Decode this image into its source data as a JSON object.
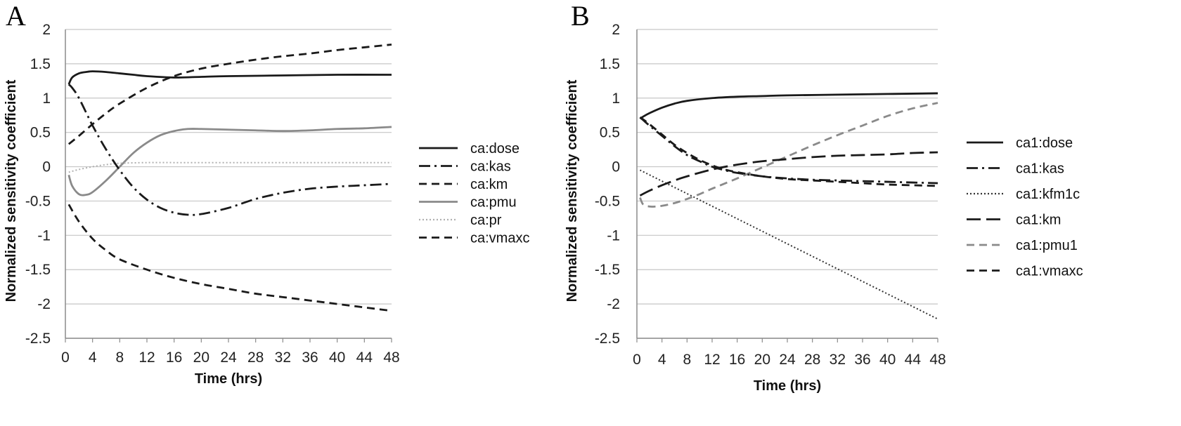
{
  "chart_data": [
    {
      "panel": "A",
      "type": "line",
      "xlabel": "Time (hrs)",
      "ylabel": "Normalized sensitivity coefficient",
      "xlim": [
        0,
        48
      ],
      "ylim": [
        -2.5,
        2
      ],
      "xticks": [
        0,
        4,
        8,
        12,
        16,
        20,
        24,
        28,
        32,
        36,
        40,
        44,
        48
      ],
      "yticks": [
        2,
        1.5,
        1,
        0.5,
        0,
        -0.5,
        -1,
        -1.5,
        -2,
        -2.5
      ],
      "ytick_labels": [
        "2",
        "1.5",
        "1",
        "0.5",
        "0",
        "-0.5",
        "-1",
        "-1.5",
        "-2",
        "-2.5"
      ],
      "grid": "horizontal",
      "legend_position": "right",
      "series": [
        {
          "name": "ca:dose",
          "color": "#1a1a1a",
          "style": "solid",
          "x": [
            0.5,
            1,
            2,
            3,
            4,
            6,
            8,
            10,
            12,
            16,
            20,
            24,
            32,
            40,
            48
          ],
          "y": [
            1.2,
            1.3,
            1.36,
            1.38,
            1.39,
            1.38,
            1.36,
            1.34,
            1.32,
            1.3,
            1.31,
            1.32,
            1.33,
            1.34,
            1.34
          ]
        },
        {
          "name": "ca:kas",
          "color": "#1a1a1a",
          "style": "dashdot",
          "x": [
            0.5,
            1,
            2,
            4,
            6,
            8,
            10,
            12,
            14,
            16,
            18,
            20,
            24,
            28,
            32,
            36,
            40,
            44,
            48
          ],
          "y": [
            1.2,
            1.15,
            1.0,
            0.6,
            0.25,
            -0.05,
            -0.3,
            -0.48,
            -0.6,
            -0.67,
            -0.7,
            -0.69,
            -0.6,
            -0.47,
            -0.38,
            -0.32,
            -0.29,
            -0.27,
            -0.25
          ]
        },
        {
          "name": "ca:km",
          "color": "#1a1a1a",
          "style": "dash",
          "x": [
            0.5,
            2,
            4,
            6,
            8,
            12,
            16,
            20,
            24,
            28,
            32,
            36,
            40,
            44,
            48
          ],
          "y": [
            0.33,
            0.45,
            0.62,
            0.78,
            0.92,
            1.15,
            1.32,
            1.43,
            1.5,
            1.56,
            1.61,
            1.65,
            1.7,
            1.74,
            1.78
          ]
        },
        {
          "name": "ca:pmu",
          "color": "#8a8a8a",
          "style": "solid",
          "x": [
            0.5,
            1,
            2,
            3,
            4,
            6,
            8,
            10,
            12,
            14,
            16,
            18,
            20,
            24,
            28,
            32,
            36,
            40,
            44,
            48
          ],
          "y": [
            -0.12,
            -0.28,
            -0.4,
            -0.41,
            -0.37,
            -0.2,
            0.0,
            0.2,
            0.35,
            0.46,
            0.52,
            0.55,
            0.55,
            0.54,
            0.53,
            0.52,
            0.53,
            0.55,
            0.56,
            0.58
          ]
        },
        {
          "name": "ca:pr",
          "color": "#b0b0b0",
          "style": "dot",
          "x": [
            0.5,
            2,
            4,
            6,
            8,
            12,
            16,
            24,
            32,
            40,
            48
          ],
          "y": [
            -0.08,
            -0.04,
            0.0,
            0.03,
            0.05,
            0.06,
            0.06,
            0.06,
            0.06,
            0.06,
            0.06
          ]
        },
        {
          "name": "ca:vmaxc",
          "color": "#1a1a1a",
          "style": "dash",
          "x": [
            0.5,
            2,
            4,
            6,
            8,
            12,
            16,
            20,
            24,
            28,
            32,
            36,
            40,
            44,
            48
          ],
          "y": [
            -0.55,
            -0.8,
            -1.05,
            -1.22,
            -1.35,
            -1.5,
            -1.62,
            -1.71,
            -1.78,
            -1.85,
            -1.9,
            -1.95,
            -2.0,
            -2.05,
            -2.1
          ]
        }
      ]
    },
    {
      "panel": "B",
      "type": "line",
      "xlabel": "Time (hrs)",
      "ylabel": "Normalized sensitivity coefficient",
      "xlim": [
        0,
        48
      ],
      "ylim": [
        -2.5,
        2
      ],
      "xticks": [
        0,
        4,
        8,
        12,
        16,
        20,
        24,
        28,
        32,
        36,
        40,
        44,
        48
      ],
      "yticks": [
        2,
        1.5,
        1,
        0.5,
        0,
        -0.5,
        -1,
        -1.5,
        -2,
        -2.5
      ],
      "ytick_labels": [
        "2",
        "1.5",
        "1",
        "0.5",
        "0",
        "-0.5",
        "-1",
        "-1.5",
        "-2",
        "-2.5"
      ],
      "grid": "horizontal",
      "legend_position": "right",
      "series": [
        {
          "name": "ca1:dose",
          "color": "#1a1a1a",
          "style": "solid",
          "x": [
            0.5,
            1,
            2,
            4,
            6,
            8,
            12,
            16,
            20,
            24,
            32,
            40,
            48
          ],
          "y": [
            0.7,
            0.73,
            0.78,
            0.86,
            0.92,
            0.96,
            1.0,
            1.02,
            1.03,
            1.04,
            1.05,
            1.06,
            1.07
          ]
        },
        {
          "name": "ca1:kas",
          "color": "#1a1a1a",
          "style": "dashdot",
          "x": [
            0.5,
            1,
            2,
            4,
            6,
            8,
            10,
            12,
            14,
            16,
            20,
            24,
            28,
            32,
            36,
            40,
            44,
            48
          ],
          "y": [
            0.72,
            0.68,
            0.6,
            0.45,
            0.3,
            0.17,
            0.08,
            0.0,
            -0.05,
            -0.09,
            -0.14,
            -0.17,
            -0.19,
            -0.2,
            -0.21,
            -0.22,
            -0.23,
            -0.24
          ]
        },
        {
          "name": "ca1:kfm1c",
          "color": "#333333",
          "style": "dot",
          "x": [
            0.5,
            48
          ],
          "y": [
            -0.05,
            -2.22
          ]
        },
        {
          "name": "ca1:km",
          "color": "#1a1a1a",
          "style": "longdash",
          "x": [
            0.5,
            2,
            4,
            6,
            8,
            12,
            16,
            20,
            24,
            28,
            32,
            36,
            40,
            44,
            48
          ],
          "y": [
            -0.42,
            -0.35,
            -0.27,
            -0.2,
            -0.14,
            -0.04,
            0.03,
            0.08,
            0.11,
            0.14,
            0.16,
            0.17,
            0.18,
            0.2,
            0.21
          ]
        },
        {
          "name": "ca1:pmu1",
          "color": "#8a8a8a",
          "style": "dash",
          "x": [
            0.5,
            1,
            2,
            3,
            4,
            6,
            8,
            10,
            12,
            16,
            20,
            24,
            28,
            32,
            36,
            40,
            44,
            48
          ],
          "y": [
            -0.45,
            -0.55,
            -0.58,
            -0.58,
            -0.57,
            -0.53,
            -0.47,
            -0.4,
            -0.32,
            -0.17,
            -0.01,
            0.15,
            0.31,
            0.46,
            0.6,
            0.74,
            0.85,
            0.93
          ]
        },
        {
          "name": "ca1:vmaxc",
          "color": "#1a1a1a",
          "style": "dash",
          "x": [
            0.5,
            1,
            2,
            4,
            6,
            8,
            10,
            12,
            14,
            16,
            20,
            24,
            28,
            32,
            36,
            40,
            44,
            48
          ],
          "y": [
            0.72,
            0.69,
            0.62,
            0.47,
            0.32,
            0.2,
            0.1,
            0.02,
            -0.04,
            -0.08,
            -0.14,
            -0.18,
            -0.2,
            -0.22,
            -0.24,
            -0.26,
            -0.27,
            -0.28
          ]
        }
      ]
    }
  ]
}
